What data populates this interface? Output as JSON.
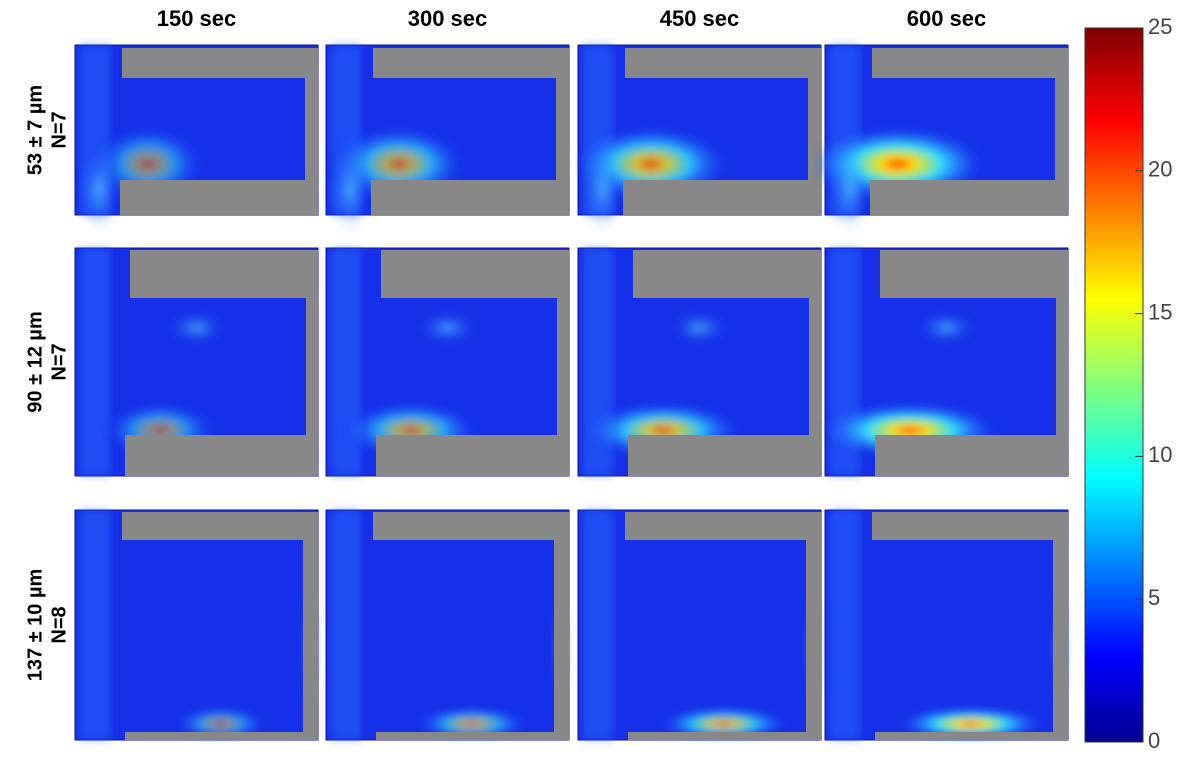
{
  "columns": [
    "150 sec",
    "300 sec",
    "450 sec",
    "600 sec"
  ],
  "rows": [
    {
      "size": "53 ± 7 µm",
      "n": "N=7"
    },
    {
      "size": "90 ± 12 µm",
      "n": "N=7"
    },
    {
      "size": "137 ± 10 µm",
      "n": "N=8"
    }
  ],
  "colorbar": {
    "lim": [
      0,
      25
    ],
    "ticks": [
      0,
      5,
      10,
      15,
      20,
      25
    ]
  }
}
